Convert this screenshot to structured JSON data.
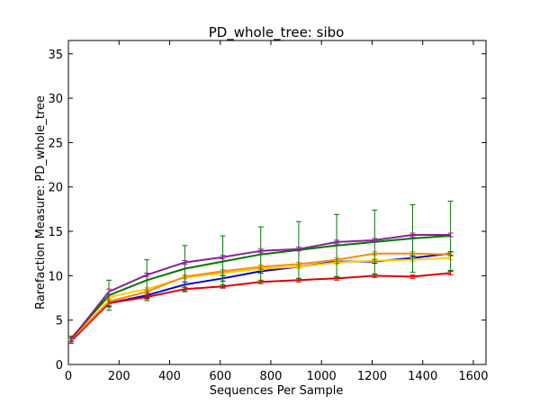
{
  "chart_data": {
    "type": "line",
    "title": "PD_whole_tree: sibo",
    "xlabel": "Sequences Per Sample",
    "ylabel": "Rarefaction Measure: PD_whole_tree",
    "xlim": [
      0,
      1650
    ],
    "ylim": [
      0,
      36.5
    ],
    "x_ticks": [
      "0",
      "200",
      "400",
      "600",
      "800",
      "1000",
      "1200",
      "1400",
      "1600"
    ],
    "y_ticks": [
      "0",
      "5",
      "10",
      "15",
      "20",
      "25",
      "30",
      "35"
    ],
    "grid": false,
    "x": [
      10,
      160,
      310,
      460,
      610,
      760,
      910,
      1060,
      1210,
      1360,
      1510
    ],
    "series": [
      {
        "color": "#0000cc",
        "values": [
          2.7,
          6.9,
          7.8,
          9.0,
          9.7,
          10.5,
          11.0,
          11.6,
          11.6,
          12.0,
          12.5
        ],
        "errors": [
          0.3,
          0.4,
          0.3,
          0.3,
          0.3,
          0.2,
          0.2,
          0.2,
          0.2,
          0.2,
          0.2
        ]
      },
      {
        "color": "#dd0000",
        "values": [
          2.6,
          6.9,
          7.6,
          8.5,
          8.8,
          9.3,
          9.5,
          9.7,
          10.0,
          9.9,
          10.3
        ],
        "errors": [
          0.2,
          0.3,
          0.2,
          0.2,
          0.2,
          0.2,
          0.2,
          0.2,
          0.2,
          0.2,
          0.2
        ]
      },
      {
        "color": "#ffcc00",
        "values": [
          3.0,
          7.6,
          8.5,
          9.8,
          10.3,
          10.8,
          11.0,
          11.5,
          11.7,
          11.8,
          12.0
        ],
        "errors": [
          0.2,
          0.3,
          0.2,
          0.2,
          0.2,
          0.2,
          0.2,
          0.2,
          0.2,
          0.2,
          0.2
        ]
      },
      {
        "color": "#ff8800",
        "values": [
          2.8,
          7.1,
          8.2,
          9.9,
          10.5,
          11.0,
          11.3,
          11.8,
          12.5,
          12.5,
          12.4
        ],
        "errors": [
          0.2,
          0.3,
          0.2,
          0.2,
          0.2,
          0.2,
          0.2,
          0.2,
          0.2,
          0.2,
          0.2
        ]
      },
      {
        "color": "#007700",
        "values": [
          2.9,
          7.8,
          9.5,
          10.8,
          11.6,
          12.4,
          12.9,
          13.4,
          13.8,
          14.2,
          14.5
        ],
        "errors": [
          0.3,
          1.7,
          2.3,
          2.6,
          2.9,
          3.1,
          3.2,
          3.5,
          3.6,
          3.8,
          3.9
        ]
      },
      {
        "color": "#882299",
        "values": [
          2.8,
          8.2,
          10.1,
          11.5,
          12.1,
          12.8,
          13.0,
          13.8,
          14.0,
          14.6,
          14.6
        ],
        "errors": [
          0.2,
          0.3,
          0.2,
          0.2,
          0.2,
          0.2,
          0.2,
          0.2,
          0.2,
          0.2,
          0.2
        ]
      }
    ]
  }
}
